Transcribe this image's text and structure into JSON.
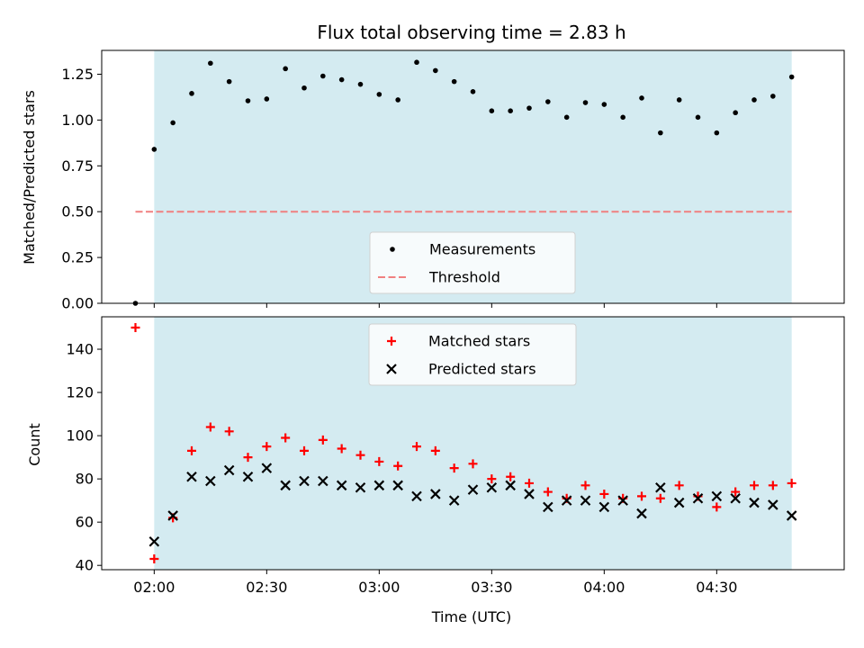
{
  "chart_data": [
    {
      "type": "scatter",
      "title": "Flux total observing time = 2.83 h",
      "xlabel": "",
      "ylabel": "Matched/Predicted stars",
      "ylim": [
        0,
        1.38
      ],
      "yticks": [
        "0.00",
        "0.25",
        "0.50",
        "0.75",
        "1.00",
        "1.25"
      ],
      "shaded_interval": [
        "02:00",
        "04:50"
      ],
      "shade_color": "#d4ebf1",
      "legend": {
        "placement": "lower center"
      },
      "series": [
        {
          "name": "Measurements",
          "marker": "dot",
          "color": "#000000",
          "points": [
            [
              "01:55",
              0.0
            ],
            [
              "02:00",
              0.84
            ],
            [
              "02:05",
              0.985
            ],
            [
              "02:10",
              1.145
            ],
            [
              "02:15",
              1.31
            ],
            [
              "02:20",
              1.21
            ],
            [
              "02:25",
              1.105
            ],
            [
              "02:30",
              1.115
            ],
            [
              "02:35",
              1.28
            ],
            [
              "02:40",
              1.175
            ],
            [
              "02:45",
              1.24
            ],
            [
              "02:50",
              1.22
            ],
            [
              "02:55",
              1.195
            ],
            [
              "03:00",
              1.14
            ],
            [
              "03:05",
              1.11
            ],
            [
              "03:10",
              1.315
            ],
            [
              "03:15",
              1.27
            ],
            [
              "03:20",
              1.21
            ],
            [
              "03:25",
              1.155
            ],
            [
              "03:30",
              1.05
            ],
            [
              "03:35",
              1.05
            ],
            [
              "03:40",
              1.065
            ],
            [
              "03:45",
              1.1
            ],
            [
              "03:50",
              1.015
            ],
            [
              "03:55",
              1.095
            ],
            [
              "04:00",
              1.085
            ],
            [
              "04:05",
              1.015
            ],
            [
              "04:10",
              1.12
            ],
            [
              "04:15",
              0.93
            ],
            [
              "04:20",
              1.11
            ],
            [
              "04:25",
              1.015
            ],
            [
              "04:30",
              0.93
            ],
            [
              "04:35",
              1.04
            ],
            [
              "04:40",
              1.11
            ],
            [
              "04:45",
              1.13
            ],
            [
              "04:50",
              1.235
            ]
          ]
        },
        {
          "name": "Threshold",
          "style": "dashed",
          "color": "#f08080",
          "points": [
            [
              "01:55",
              0.5
            ],
            [
              "04:50",
              0.5
            ]
          ]
        }
      ]
    },
    {
      "type": "scatter",
      "title": "",
      "xlabel": "Time (UTC)",
      "ylabel": "Count",
      "ylim": [
        38,
        155
      ],
      "yticks": [
        "40",
        "60",
        "80",
        "100",
        "120",
        "140"
      ],
      "xticks": [
        "02:00",
        "02:30",
        "03:00",
        "03:30",
        "04:00",
        "04:30"
      ],
      "xlim": [
        "01:46",
        "05:04"
      ],
      "shaded_interval": [
        "02:00",
        "04:50"
      ],
      "legend": {
        "placement": "upper center"
      },
      "series": [
        {
          "name": "Matched stars",
          "marker": "plus",
          "color": "#ff0000",
          "points": [
            [
              "01:55",
              150
            ],
            [
              "02:00",
              43
            ],
            [
              "02:05",
              62
            ],
            [
              "02:10",
              93
            ],
            [
              "02:15",
              104
            ],
            [
              "02:20",
              102
            ],
            [
              "02:25",
              90
            ],
            [
              "02:30",
              95
            ],
            [
              "02:35",
              99
            ],
            [
              "02:40",
              93
            ],
            [
              "02:45",
              98
            ],
            [
              "02:50",
              94
            ],
            [
              "02:55",
              91
            ],
            [
              "03:00",
              88
            ],
            [
              "03:05",
              86
            ],
            [
              "03:10",
              95
            ],
            [
              "03:15",
              93
            ],
            [
              "03:20",
              85
            ],
            [
              "03:25",
              87
            ],
            [
              "03:30",
              80
            ],
            [
              "03:35",
              81
            ],
            [
              "03:40",
              78
            ],
            [
              "03:45",
              74
            ],
            [
              "03:50",
              71
            ],
            [
              "03:55",
              77
            ],
            [
              "04:00",
              73
            ],
            [
              "04:05",
              71
            ],
            [
              "04:10",
              72
            ],
            [
              "04:15",
              71
            ],
            [
              "04:20",
              77
            ],
            [
              "04:25",
              72
            ],
            [
              "04:30",
              67
            ],
            [
              "04:35",
              74
            ],
            [
              "04:40",
              77
            ],
            [
              "04:45",
              77
            ],
            [
              "04:50",
              78
            ]
          ]
        },
        {
          "name": "Predicted stars",
          "marker": "x",
          "color": "#000000",
          "points": [
            [
              "02:00",
              51
            ],
            [
              "02:05",
              63
            ],
            [
              "02:10",
              81
            ],
            [
              "02:15",
              79
            ],
            [
              "02:20",
              84
            ],
            [
              "02:25",
              81
            ],
            [
              "02:30",
              85
            ],
            [
              "02:35",
              77
            ],
            [
              "02:40",
              79
            ],
            [
              "02:45",
              79
            ],
            [
              "02:50",
              77
            ],
            [
              "02:55",
              76
            ],
            [
              "03:00",
              77
            ],
            [
              "03:05",
              77
            ],
            [
              "03:10",
              72
            ],
            [
              "03:15",
              73
            ],
            [
              "03:20",
              70
            ],
            [
              "03:25",
              75
            ],
            [
              "03:30",
              76
            ],
            [
              "03:35",
              77
            ],
            [
              "03:40",
              73
            ],
            [
              "03:45",
              67
            ],
            [
              "03:50",
              70
            ],
            [
              "03:55",
              70
            ],
            [
              "04:00",
              67
            ],
            [
              "04:05",
              70
            ],
            [
              "04:10",
              64
            ],
            [
              "04:15",
              76
            ],
            [
              "04:20",
              69
            ],
            [
              "04:25",
              71
            ],
            [
              "04:30",
              72
            ],
            [
              "04:35",
              71
            ],
            [
              "04:40",
              69
            ],
            [
              "04:45",
              68
            ],
            [
              "04:50",
              63
            ]
          ]
        }
      ]
    }
  ]
}
